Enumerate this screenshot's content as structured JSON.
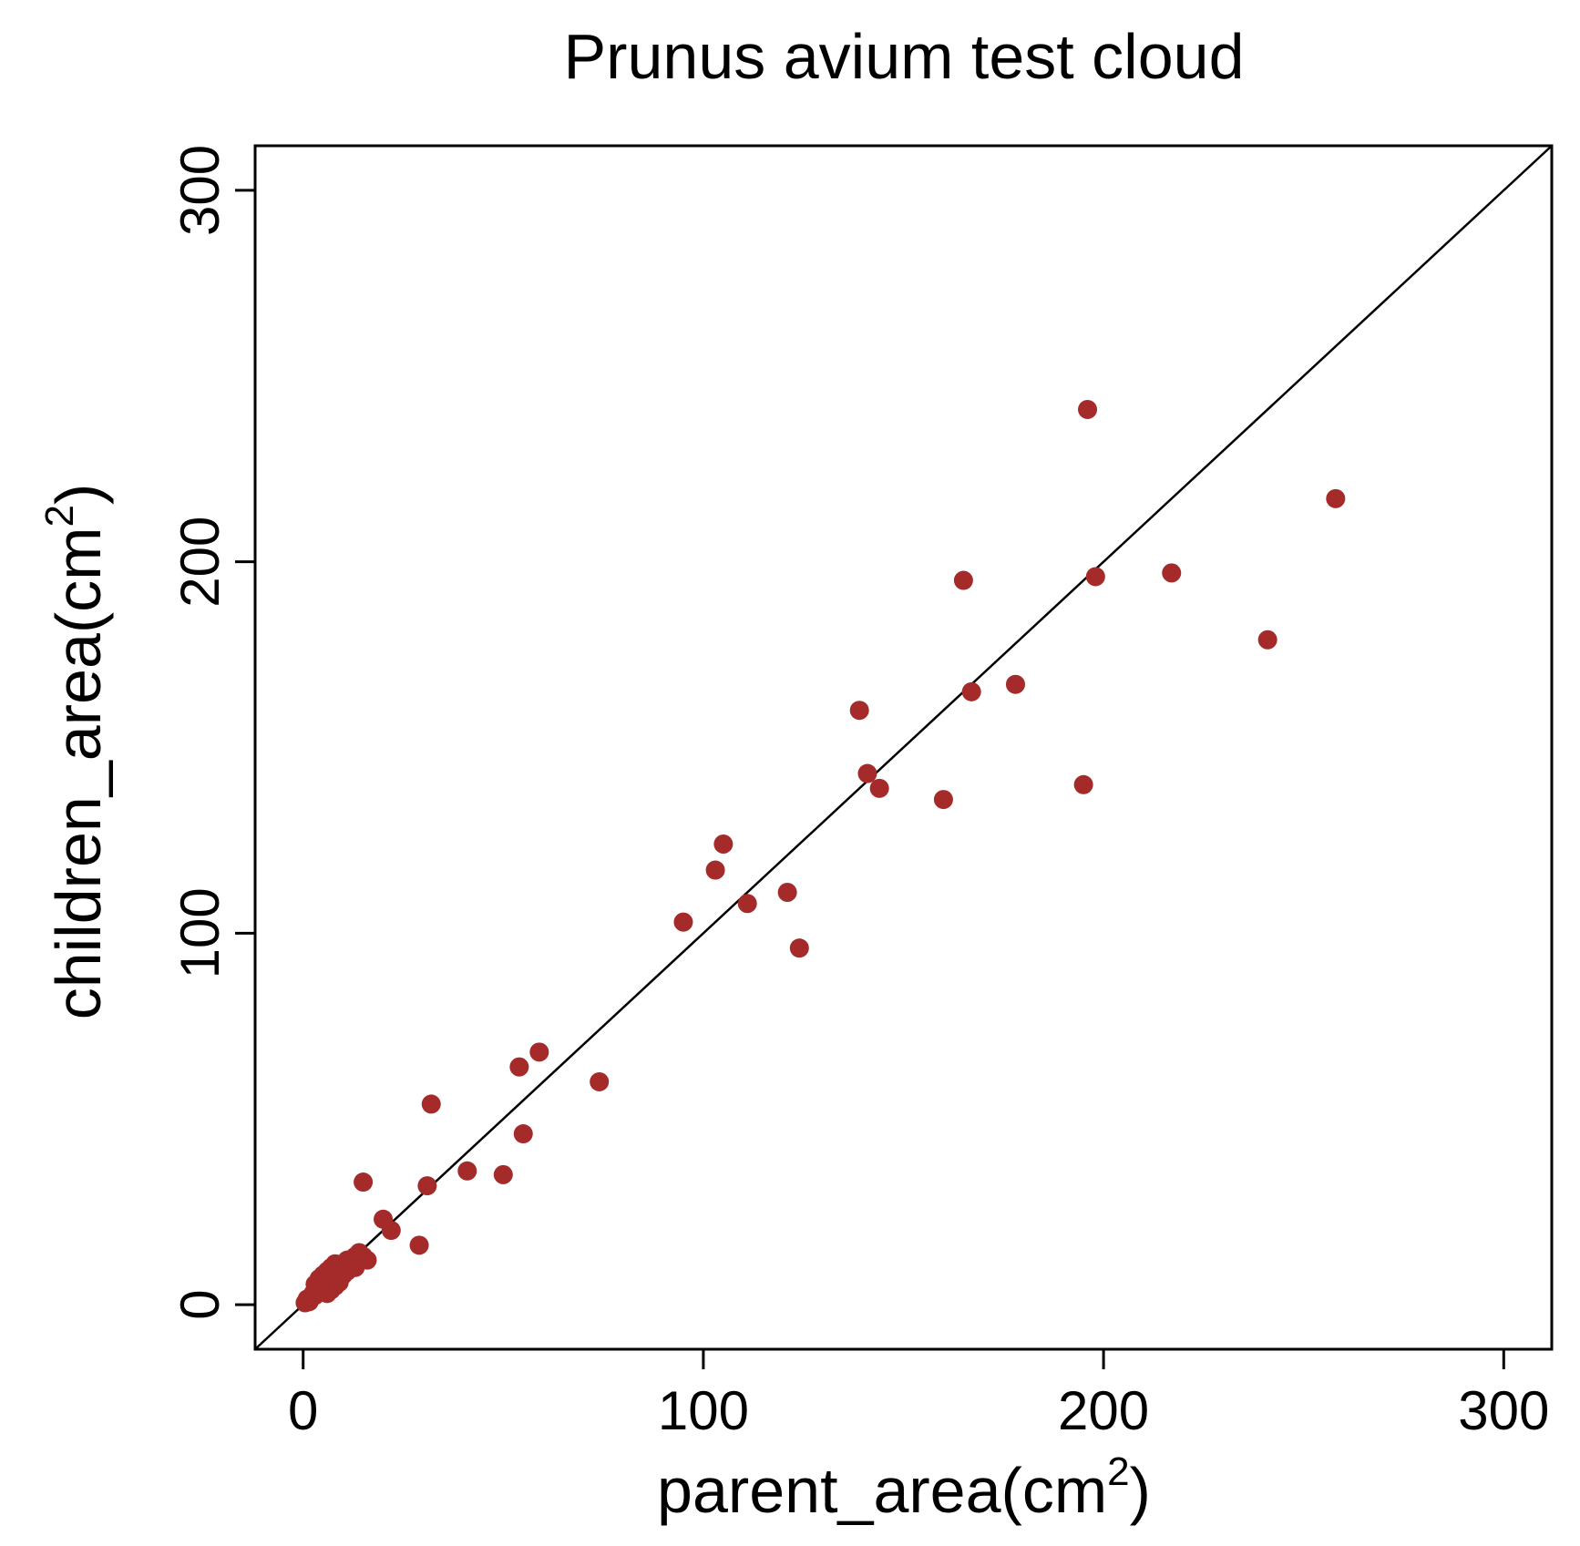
{
  "chart_data": {
    "type": "scatter",
    "title": "Prunus avium test cloud",
    "xlabel": "parent_area(cm",
    "xlabel_sup": "2",
    "xlabel_close": ")",
    "ylabel": "children_area(cm",
    "ylabel_sup": "2",
    "ylabel_close": ")",
    "xlim": [
      -12,
      312
    ],
    "ylim": [
      -12,
      312
    ],
    "xticks": [
      "0",
      "100",
      "200",
      "300"
    ],
    "xtick_values": [
      0,
      100,
      200,
      300
    ],
    "yticks": [
      "0",
      "100",
      "200",
      "300"
    ],
    "ytick_values": [
      0,
      100,
      200,
      300
    ],
    "grid": false,
    "reference_line": {
      "slope": 1,
      "intercept": 0
    },
    "point_color": "#A52A2A",
    "line_color": "#000000",
    "points": [
      [
        0.5,
        0.5
      ],
      [
        1,
        1.5
      ],
      [
        1.5,
        0.8
      ],
      [
        2,
        2
      ],
      [
        2.5,
        3
      ],
      [
        3,
        2.5
      ],
      [
        3.5,
        4
      ],
      [
        4,
        3.5
      ],
      [
        4.5,
        5
      ],
      [
        5,
        4
      ],
      [
        5.5,
        6
      ],
      [
        6,
        5
      ],
      [
        6.5,
        7
      ],
      [
        7,
        6
      ],
      [
        7.5,
        8
      ],
      [
        8,
        7
      ],
      [
        3,
        5.5
      ],
      [
        4,
        7
      ],
      [
        5,
        8
      ],
      [
        6,
        9
      ],
      [
        7,
        10
      ],
      [
        8,
        11
      ],
      [
        9,
        10
      ],
      [
        10,
        9
      ],
      [
        11,
        12
      ],
      [
        12,
        11
      ],
      [
        13,
        13
      ],
      [
        14,
        14
      ],
      [
        6,
        3
      ],
      [
        7,
        4
      ],
      [
        8,
        5
      ],
      [
        9,
        6
      ],
      [
        10,
        8
      ],
      [
        11,
        9
      ],
      [
        12,
        10
      ],
      [
        13,
        10
      ],
      [
        14,
        12
      ],
      [
        15,
        13
      ],
      [
        16,
        12
      ],
      [
        15,
        33
      ],
      [
        20,
        23
      ],
      [
        22,
        20
      ],
      [
        29,
        16
      ],
      [
        31,
        32
      ],
      [
        32,
        54
      ],
      [
        41,
        36
      ],
      [
        50,
        35
      ],
      [
        55,
        46
      ],
      [
        54,
        64
      ],
      [
        59,
        68
      ],
      [
        74,
        60
      ],
      [
        95,
        103
      ],
      [
        103,
        117
      ],
      [
        105,
        124
      ],
      [
        111,
        108
      ],
      [
        121,
        111
      ],
      [
        124,
        96
      ],
      [
        139,
        160
      ],
      [
        141,
        143
      ],
      [
        144,
        139
      ],
      [
        160,
        136
      ],
      [
        165,
        195
      ],
      [
        167,
        165
      ],
      [
        178,
        167
      ],
      [
        195,
        140
      ],
      [
        196,
        241
      ],
      [
        198,
        196
      ],
      [
        217,
        197
      ],
      [
        241,
        179
      ],
      [
        258,
        217
      ]
    ]
  }
}
